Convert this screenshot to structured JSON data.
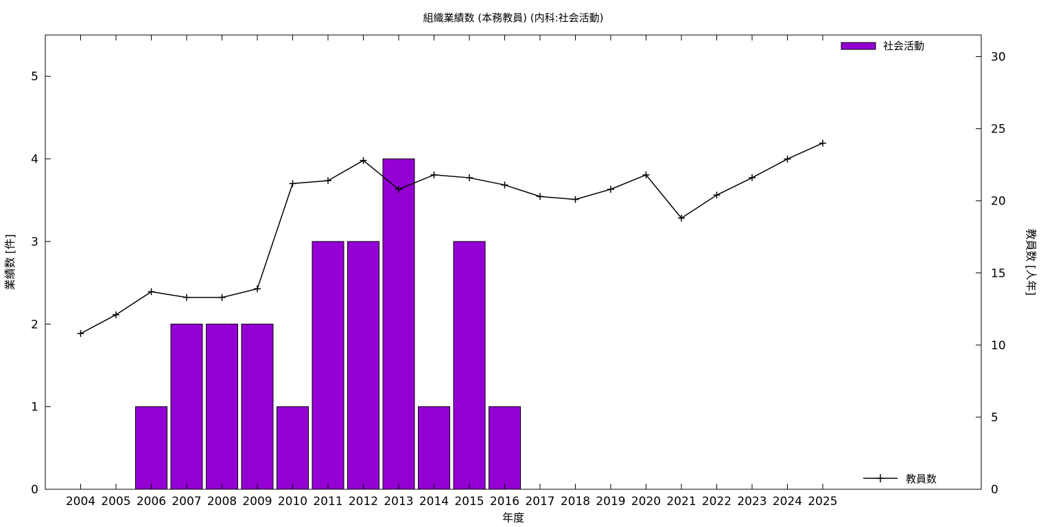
{
  "chart_data": {
    "type": "bar",
    "title": "組織業績数 (本務教員) (内科:社会活動)",
    "xlabel": "年度",
    "ylabel": "業績数 [件]",
    "y2label": "教員数 [人年]",
    "categories": [
      "2004",
      "2005",
      "2006",
      "2007",
      "2008",
      "2009",
      "2010",
      "2011",
      "2012",
      "2013",
      "2014",
      "2015",
      "2016",
      "2017",
      "2018",
      "2019",
      "2020",
      "2021",
      "2022",
      "2023",
      "2024",
      "2025"
    ],
    "ylim": [
      0,
      5.5
    ],
    "yticks": [
      "0",
      "1",
      "2",
      "3",
      "4",
      "5"
    ],
    "y2lim": [
      0,
      31.5
    ],
    "y2ticks": [
      "0",
      "5",
      "10",
      "15",
      "20",
      "25",
      "30"
    ],
    "grid": false,
    "series": [
      {
        "name": "社会活動",
        "type": "bar",
        "axis": "left",
        "color": "#9400d3",
        "values": [
          0,
          0,
          1,
          2,
          2,
          2,
          1,
          3,
          3,
          4,
          1,
          3,
          1,
          0,
          0,
          0,
          0,
          0,
          0,
          0,
          0,
          0
        ]
      },
      {
        "name": "教員数",
        "type": "line",
        "axis": "right",
        "color": "#000000",
        "marker": "plus",
        "values": [
          10.8,
          12.1,
          13.7,
          13.3,
          13.3,
          13.9,
          21.2,
          21.4,
          22.8,
          20.8,
          21.8,
          21.6,
          21.1,
          20.3,
          20.1,
          20.8,
          21.8,
          18.8,
          20.4,
          21.6,
          22.9,
          24.0
        ]
      }
    ],
    "legend": [
      {
        "label": "社会活動",
        "position": "top-right",
        "kind": "bar"
      },
      {
        "label": "教員数",
        "position": "bottom-right",
        "kind": "line"
      }
    ]
  }
}
